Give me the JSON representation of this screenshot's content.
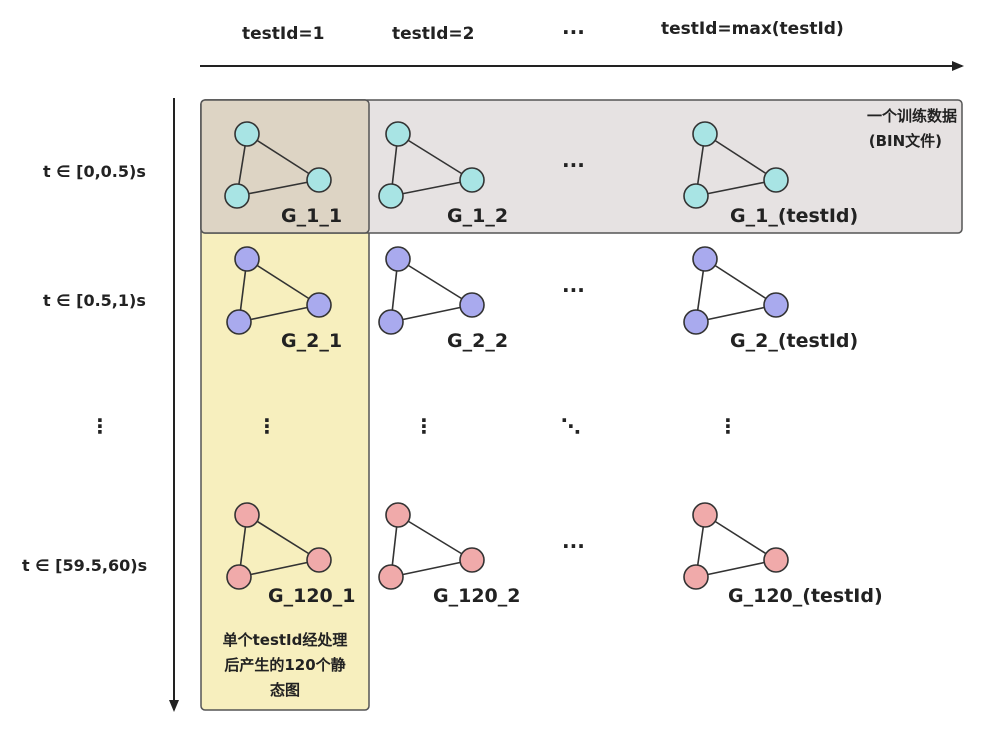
{
  "columns": [
    "testId=1",
    "testId=2",
    "···",
    "testId=max(testId)"
  ],
  "rows": [
    "t ∈ [0,0.5)s",
    "t ∈ [0.5,1)s",
    "⋮",
    "t ∈ [59.5,60)s"
  ],
  "graphs": {
    "row1": [
      "G_1_1",
      "G_1_2",
      "G_1_(testId)"
    ],
    "row2": [
      "G_2_1",
      "G_2_2",
      "G_2_(testId)"
    ],
    "row3": [
      "G_120_1",
      "G_120_2",
      "G_120_(testId)"
    ]
  },
  "ellipsis": {
    "horizontal": "···",
    "vertical": "⋮",
    "diagonal": "⋱"
  },
  "annotations": {
    "training_data_line1": "一个训练数据",
    "training_data_line2": "(BIN文件)",
    "static_graphs_line1": "单个testId经处理",
    "static_graphs_line2": "后产生的120个静",
    "static_graphs_line3": "态图"
  },
  "colors": {
    "row1_node": "#a8e4e4",
    "row2_node": "#a9aaee",
    "row3_node": "#f0aaaa",
    "training_box_fill": "#e6e2e2",
    "column_box_fill": "#f7efbe",
    "overlap_fill": "#ddd4c4"
  }
}
